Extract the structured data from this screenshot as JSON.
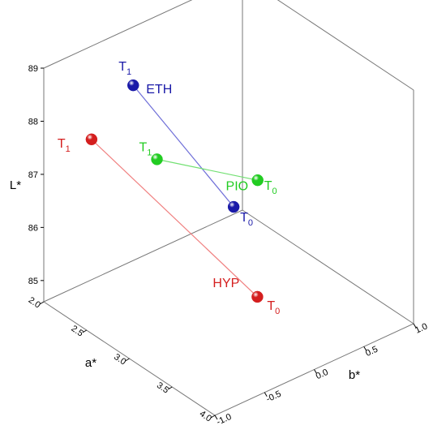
{
  "chart_data": {
    "type": "scatter",
    "projection": "3d",
    "title": "",
    "axes": {
      "a": {
        "label": "a*",
        "range": [
          2.0,
          4.0
        ],
        "ticks": [
          "2.0",
          "2.5",
          "3.0",
          "3.5",
          "4.0"
        ]
      },
      "b": {
        "label": "b*",
        "range": [
          -1.0,
          1.0
        ],
        "ticks": [
          "-1.0",
          "-0.5",
          "0.0",
          "0.5",
          "1.0"
        ]
      },
      "L": {
        "label": "L*",
        "range": [
          84.6,
          89
        ],
        "ticks": [
          "85",
          "86",
          "87",
          "88",
          "89"
        ]
      }
    },
    "grid": false,
    "series": [
      {
        "name": "ETH",
        "color": "#1a1aa8",
        "line_color": "#6f6fd8",
        "points": [
          {
            "label": "T",
            "sub": "1",
            "a": 2.0,
            "b": -0.1,
            "L": 87.9
          },
          {
            "label": "T",
            "sub": "0",
            "a": 3.0,
            "b": 0.05,
            "L": 86.55
          }
        ]
      },
      {
        "name": "PIO",
        "color": "#22cc22",
        "line_color": "#72e072",
        "points": [
          {
            "label": "T",
            "sub": "1",
            "a": 2.8,
            "b": -0.55,
            "L": 87.75
          },
          {
            "label": "T",
            "sub": "0",
            "a": 2.7,
            "b": 0.55,
            "L": 86.3
          }
        ]
      },
      {
        "name": "HYP",
        "color": "#d41e1e",
        "line_color": "#f08080",
        "points": [
          {
            "label": "T",
            "sub": "1",
            "a": 2.5,
            "b": -0.95,
            "L": 88.15
          },
          {
            "label": "T",
            "sub": "0",
            "a": 3.8,
            "b": -0.4,
            "L": 86.1
          }
        ]
      }
    ]
  }
}
